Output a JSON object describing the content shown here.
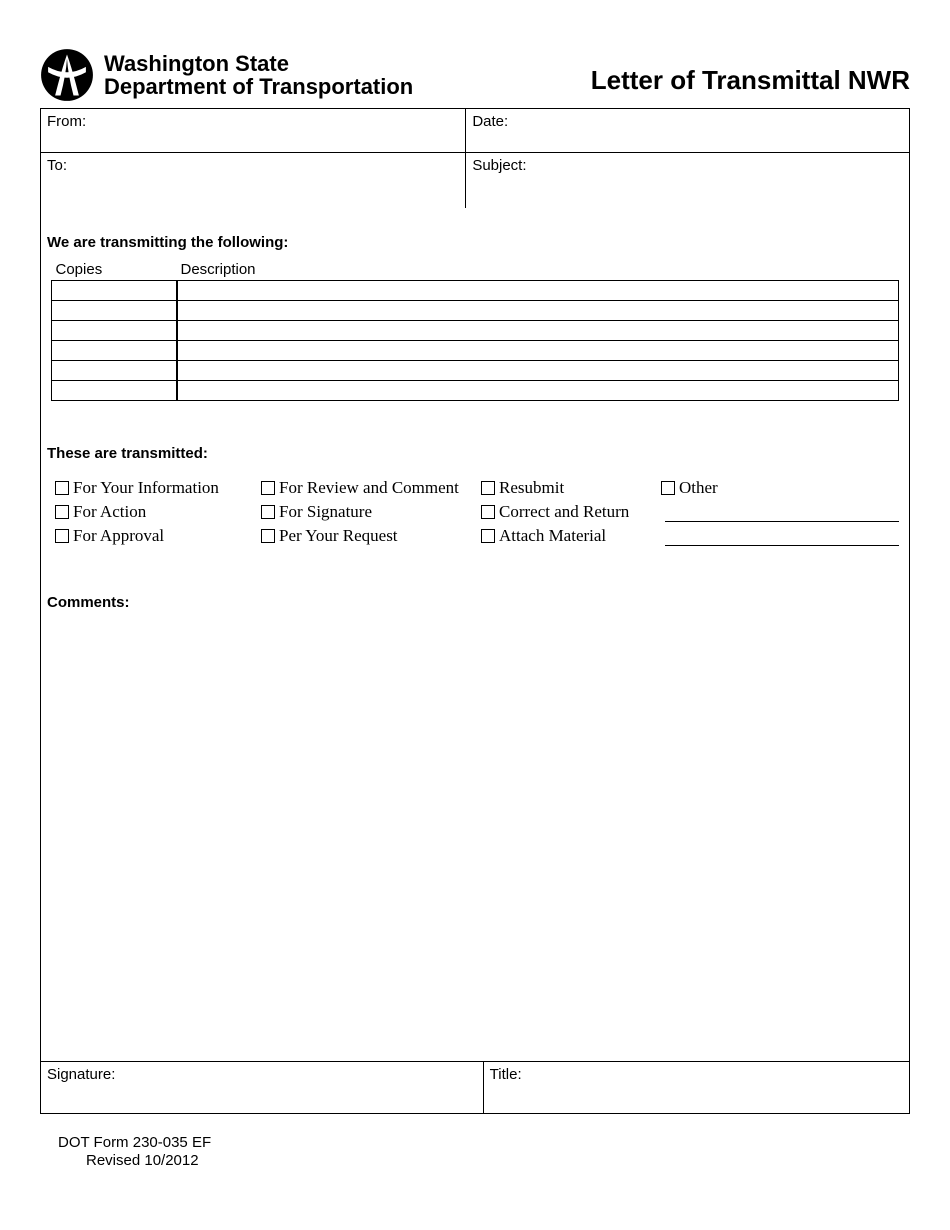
{
  "agency": {
    "line1": "Washington State",
    "line2": "Department of Transportation"
  },
  "form_title": "Letter of Transmittal NWR",
  "fields": {
    "from_label": "From:",
    "date_label": "Date:",
    "to_label": "To:",
    "subject_label": "Subject:",
    "signature_label": "Signature:",
    "title_label": "Title:"
  },
  "section_transmitting": "We are transmitting the following:",
  "items_table": {
    "col_copies": "Copies",
    "col_description": "Description",
    "row_count": 6
  },
  "section_transmitted": "These are transmitted:",
  "checkboxes": {
    "col_a": [
      "For Your Information",
      "For Action",
      "For Approval"
    ],
    "col_b": [
      "For Review and Comment",
      "For Signature",
      "Per Your Request"
    ],
    "col_c": [
      "Resubmit",
      "Correct and Return",
      "Attach Material"
    ],
    "col_d": [
      "Other"
    ]
  },
  "section_comments": "Comments:",
  "footer": {
    "line1": "DOT Form 230-035 EF",
    "line2": "Revised 10/2012"
  },
  "colors": {
    "border": "#000000",
    "background": "#ffffff",
    "text": "#000000"
  }
}
